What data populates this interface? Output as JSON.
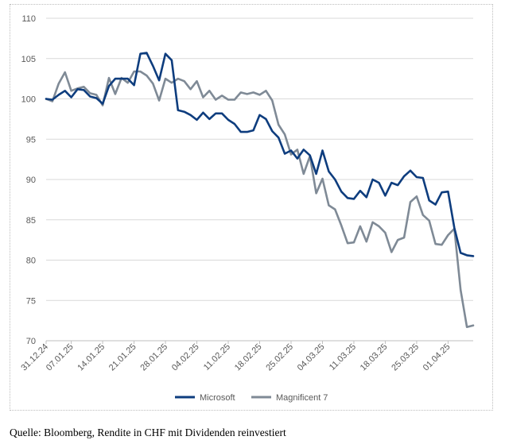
{
  "chart_data": {
    "type": "line",
    "title": "",
    "xlabel": "",
    "ylabel": "",
    "ylim": [
      70,
      110
    ],
    "yticks": [
      70,
      75,
      80,
      85,
      90,
      95,
      100,
      105,
      110
    ],
    "grid": "horizontal",
    "legend_position": "bottom",
    "x_tick_labels": [
      "31.12.24",
      "07.01.25",
      "14.01.25",
      "21.01.25",
      "28.01.25",
      "04.02.25",
      "11.02.25",
      "18.02.25",
      "25.02.25",
      "04.03.25",
      "11.03.25",
      "18.03.25",
      "25.03.25",
      "01.04.25"
    ],
    "x": [
      "31.12.24",
      "02.01.25",
      "03.01.25",
      "06.01.25",
      "07.01.25",
      "08.01.25",
      "09.01.25",
      "10.01.25",
      "13.01.25",
      "14.01.25",
      "15.01.25",
      "16.01.25",
      "17.01.25",
      "20.01.25",
      "21.01.25",
      "22.01.25",
      "23.01.25",
      "24.01.25",
      "27.01.25",
      "28.01.25",
      "29.01.25",
      "30.01.25",
      "31.01.25",
      "03.02.25",
      "04.02.25",
      "05.02.25",
      "06.02.25",
      "07.02.25",
      "10.02.25",
      "11.02.25",
      "12.02.25",
      "13.02.25",
      "14.02.25",
      "17.02.25",
      "18.02.25",
      "19.02.25",
      "20.02.25",
      "21.02.25",
      "24.02.25",
      "25.02.25",
      "26.02.25",
      "27.02.25",
      "28.02.25",
      "03.03.25",
      "04.03.25",
      "05.03.25",
      "06.03.25",
      "07.03.25",
      "10.03.25",
      "11.03.25",
      "12.03.25",
      "13.03.25",
      "14.03.25",
      "17.03.25",
      "18.03.25",
      "19.03.25",
      "20.03.25",
      "21.03.25",
      "24.03.25",
      "25.03.25",
      "26.03.25",
      "27.03.25",
      "28.03.25",
      "31.03.25",
      "01.04.25",
      "02.04.25",
      "03.04.25",
      "04.04.25",
      "07.04.25"
    ],
    "series": [
      {
        "name": "Microsoft",
        "color": "#0e3d7e",
        "values": [
          100.0,
          99.9,
          100.5,
          101.0,
          100.2,
          101.2,
          101.1,
          100.3,
          100.1,
          99.4,
          101.6,
          102.5,
          102.5,
          102.5,
          101.7,
          105.6,
          105.7,
          104.1,
          102.3,
          105.6,
          104.8,
          98.6,
          98.4,
          98.0,
          97.4,
          98.3,
          97.5,
          98.2,
          98.2,
          97.4,
          96.9,
          95.9,
          95.9,
          96.1,
          98.0,
          97.5,
          96.0,
          95.2,
          93.2,
          93.6,
          92.6,
          93.7,
          93.0,
          90.7,
          93.6,
          91.0,
          90.0,
          88.5,
          87.7,
          87.6,
          88.6,
          87.8,
          90.0,
          89.6,
          88.0,
          89.6,
          89.3,
          90.4,
          91.1,
          90.3,
          90.2,
          87.4,
          86.9,
          88.4,
          88.5,
          84.0,
          80.9,
          80.6,
          80.5
        ]
      },
      {
        "name": "Magnificent 7",
        "color": "#7f8a96",
        "values": [
          100.0,
          99.7,
          101.9,
          103.3,
          101.0,
          101.3,
          101.5,
          100.7,
          100.5,
          99.2,
          102.6,
          100.6,
          102.6,
          102.0,
          103.4,
          103.4,
          102.9,
          101.9,
          99.8,
          102.5,
          102.0,
          102.5,
          102.2,
          101.2,
          102.2,
          100.2,
          101.0,
          99.9,
          100.4,
          99.9,
          99.9,
          100.8,
          100.6,
          100.8,
          100.5,
          101.0,
          99.8,
          96.8,
          95.6,
          93.1,
          93.7,
          90.7,
          92.9,
          88.3,
          90.1,
          86.8,
          86.3,
          84.3,
          82.1,
          82.2,
          84.2,
          82.3,
          84.7,
          84.2,
          83.4,
          81.0,
          82.5,
          82.8,
          87.2,
          87.9,
          85.6,
          84.9,
          82.0,
          81.9,
          83.1,
          83.9,
          76.3,
          71.7,
          71.9
        ]
      }
    ]
  },
  "source_note": "Quelle: Bloomberg, Rendite in CHF mit Dividenden reinvestiert"
}
